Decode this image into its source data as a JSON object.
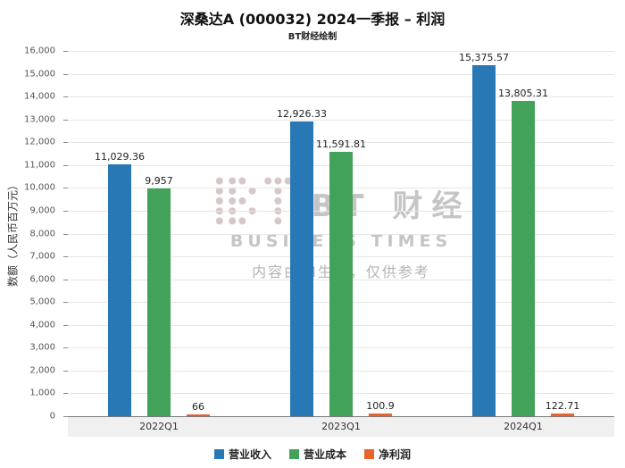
{
  "chart_data": {
    "type": "bar",
    "title": "深桑达A (000032) 2024一季报 – 利润",
    "subtitle": "BT财经绘制",
    "ylabel": "数额（人民币百万元）",
    "categories": [
      "2022Q1",
      "2023Q1",
      "2024Q1"
    ],
    "series": [
      {
        "name": "营业收入",
        "color": "#2878B5",
        "values": [
          11029.36,
          12926.33,
          15375.57
        ],
        "labels": [
          "11,029.36",
          "12,926.33",
          "15,375.57"
        ]
      },
      {
        "name": "营业成本",
        "color": "#42A25A",
        "values": [
          9957,
          11591.81,
          13805.31
        ],
        "labels": [
          "9,957",
          "11,591.81",
          "13,805.31"
        ]
      },
      {
        "name": "净利润",
        "color": "#E8622C",
        "values": [
          66,
          100.9,
          122.71
        ],
        "labels": [
          "66",
          "100.9",
          "122.71"
        ]
      }
    ],
    "ylim": [
      0,
      16000
    ],
    "ytick_step": 1000,
    "grid": true,
    "legend_position": "bottom"
  },
  "watermark": {
    "logo_text": "BT 财经",
    "logo_subtext": "BUSINESS TIMES",
    "disclaimer": "内容由AI生成，仅供参考"
  }
}
